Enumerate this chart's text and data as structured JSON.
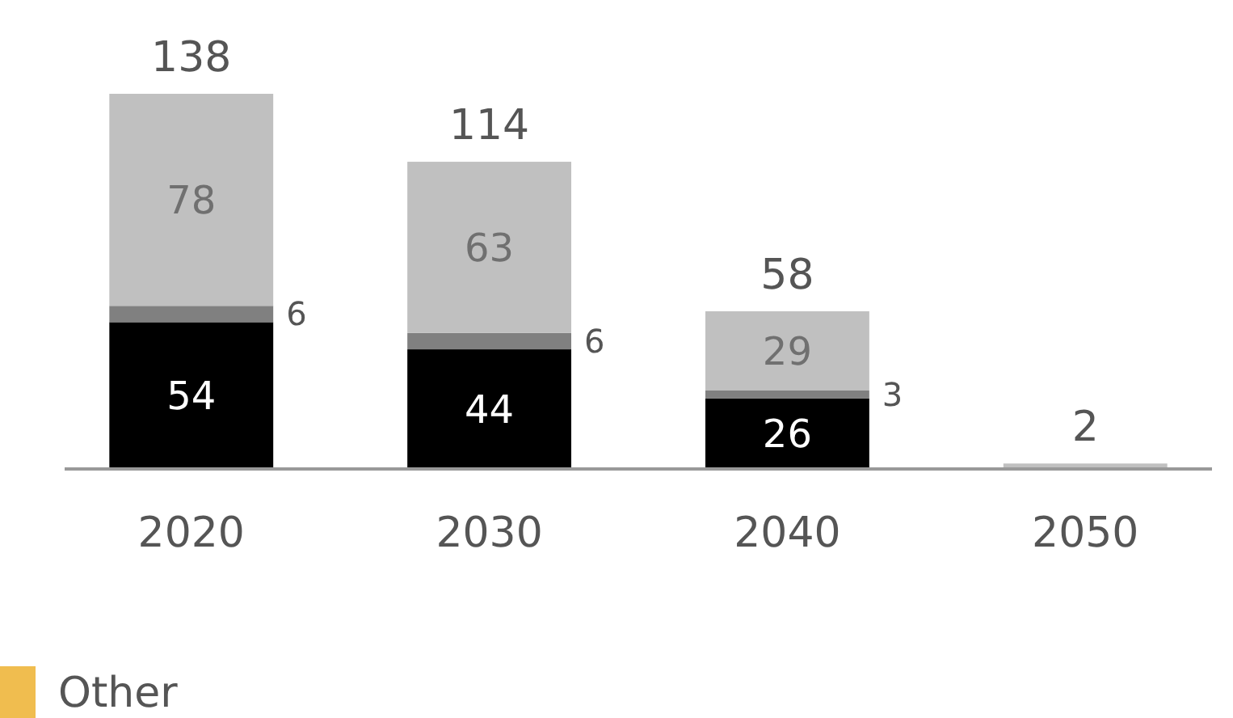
{
  "chart_data": {
    "type": "bar",
    "stacked": true,
    "categories": [
      "2020",
      "2030",
      "2040",
      "2050"
    ],
    "series": [
      {
        "color": "#000000",
        "values": [
          54,
          44,
          26,
          null
        ],
        "value_labels": [
          "54",
          "44",
          "26",
          null
        ]
      },
      {
        "color": "#808080",
        "values": [
          6,
          6,
          3,
          null
        ],
        "value_labels": [
          "6",
          "6",
          "3",
          null
        ]
      },
      {
        "color": "#c0c0c0",
        "values": [
          78,
          63,
          29,
          2
        ],
        "value_labels": [
          "78",
          "63",
          "29",
          null
        ]
      },
      {
        "name": "Other",
        "color": "#f0bd4f",
        "values": [
          null,
          null,
          null,
          null
        ]
      }
    ],
    "totals": [
      "138",
      "114",
      "58",
      "2"
    ],
    "legend": "bottom left"
  }
}
